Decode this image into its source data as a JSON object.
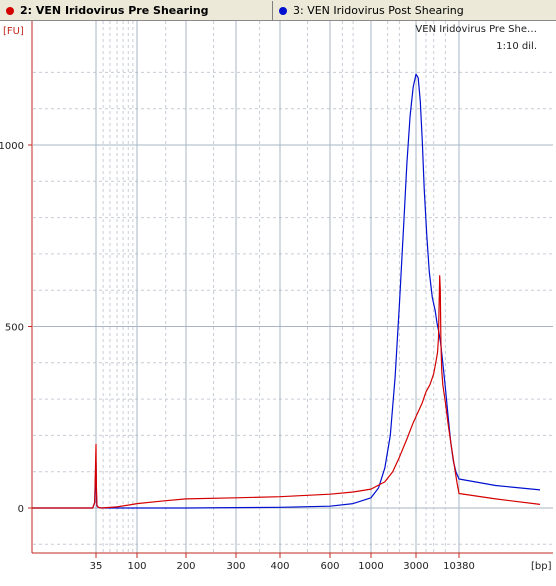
{
  "tabs": [
    {
      "label": "2: VEN Iridovirus Pre Shearing",
      "color": "#d40000",
      "active": true
    },
    {
      "label": "3: VEN Iridovirus Post Shearing",
      "color": "#0010d0",
      "active": false
    }
  ],
  "chart_data": {
    "type": "line",
    "y_unit": "[FU]",
    "x_unit": "[bp]",
    "ylim": [
      -120,
      1320
    ],
    "y_ticks": [
      0,
      500,
      1000
    ],
    "x_ticks_major": [
      35,
      100,
      200,
      300,
      400,
      600,
      1000,
      3000,
      10380
    ],
    "x_ticks_minor": [
      1500,
      2000,
      4000,
      5000,
      7000
    ],
    "annotations": [
      "VEN Iridovirus Pre She…",
      "1:10 dil."
    ],
    "grid": true,
    "colors": {
      "axis": "#c0281f",
      "grid_major": "#a9b4c6",
      "grid_minor": "#c7ccd6"
    },
    "series": [
      {
        "name": "2: VEN Iridovirus Pre Shearing",
        "color": "#d40000",
        "points": [
          [
            20,
            0
          ],
          [
            34,
            0
          ],
          [
            34.6,
            15
          ],
          [
            35,
            175
          ],
          [
            35.4,
            60
          ],
          [
            35.8,
            8
          ],
          [
            37,
            2
          ],
          [
            40,
            0
          ],
          [
            60,
            3
          ],
          [
            80,
            8
          ],
          [
            100,
            12
          ],
          [
            150,
            20
          ],
          [
            200,
            25
          ],
          [
            300,
            28
          ],
          [
            400,
            31
          ],
          [
            600,
            38
          ],
          [
            800,
            44
          ],
          [
            1000,
            52
          ],
          [
            1400,
            72
          ],
          [
            1700,
            100
          ],
          [
            2000,
            140
          ],
          [
            2400,
            190
          ],
          [
            2800,
            235
          ],
          [
            3200,
            265
          ],
          [
            3600,
            290
          ],
          [
            4000,
            320
          ],
          [
            4500,
            340
          ],
          [
            5000,
            370
          ],
          [
            5400,
            410
          ],
          [
            5600,
            430
          ],
          [
            5750,
            470
          ],
          [
            5850,
            560
          ],
          [
            5950,
            640
          ],
          [
            6050,
            600
          ],
          [
            6150,
            460
          ],
          [
            6300,
            380
          ],
          [
            6500,
            340
          ],
          [
            7000,
            290
          ],
          [
            7600,
            230
          ],
          [
            8200,
            180
          ],
          [
            9000,
            120
          ],
          [
            9800,
            70
          ],
          [
            10380,
            40
          ],
          [
            11000,
            25
          ],
          [
            11800,
            10
          ]
        ]
      },
      {
        "name": "3: VEN Iridovirus Post Shearing",
        "color": "#0010d0",
        "points": [
          [
            20,
            0
          ],
          [
            34,
            0
          ],
          [
            34.6,
            15
          ],
          [
            35,
            125
          ],
          [
            35.4,
            40
          ],
          [
            35.8,
            6
          ],
          [
            37,
            2
          ],
          [
            40,
            0
          ],
          [
            100,
            0
          ],
          [
            200,
            0
          ],
          [
            300,
            1
          ],
          [
            400,
            2
          ],
          [
            600,
            5
          ],
          [
            800,
            12
          ],
          [
            1000,
            28
          ],
          [
            1200,
            55
          ],
          [
            1400,
            110
          ],
          [
            1600,
            200
          ],
          [
            1800,
            360
          ],
          [
            2000,
            560
          ],
          [
            2200,
            760
          ],
          [
            2400,
            950
          ],
          [
            2600,
            1080
          ],
          [
            2800,
            1160
          ],
          [
            3000,
            1195
          ],
          [
            3200,
            1185
          ],
          [
            3400,
            1120
          ],
          [
            3600,
            1010
          ],
          [
            3800,
            880
          ],
          [
            4100,
            750
          ],
          [
            4400,
            650
          ],
          [
            4800,
            580
          ],
          [
            5200,
            545
          ],
          [
            5500,
            510
          ],
          [
            5800,
            485
          ],
          [
            6100,
            455
          ],
          [
            6500,
            400
          ],
          [
            7000,
            330
          ],
          [
            7600,
            250
          ],
          [
            8200,
            180
          ],
          [
            8800,
            130
          ],
          [
            9500,
            100
          ],
          [
            10380,
            80
          ],
          [
            11000,
            62
          ],
          [
            11800,
            50
          ]
        ]
      }
    ]
  }
}
